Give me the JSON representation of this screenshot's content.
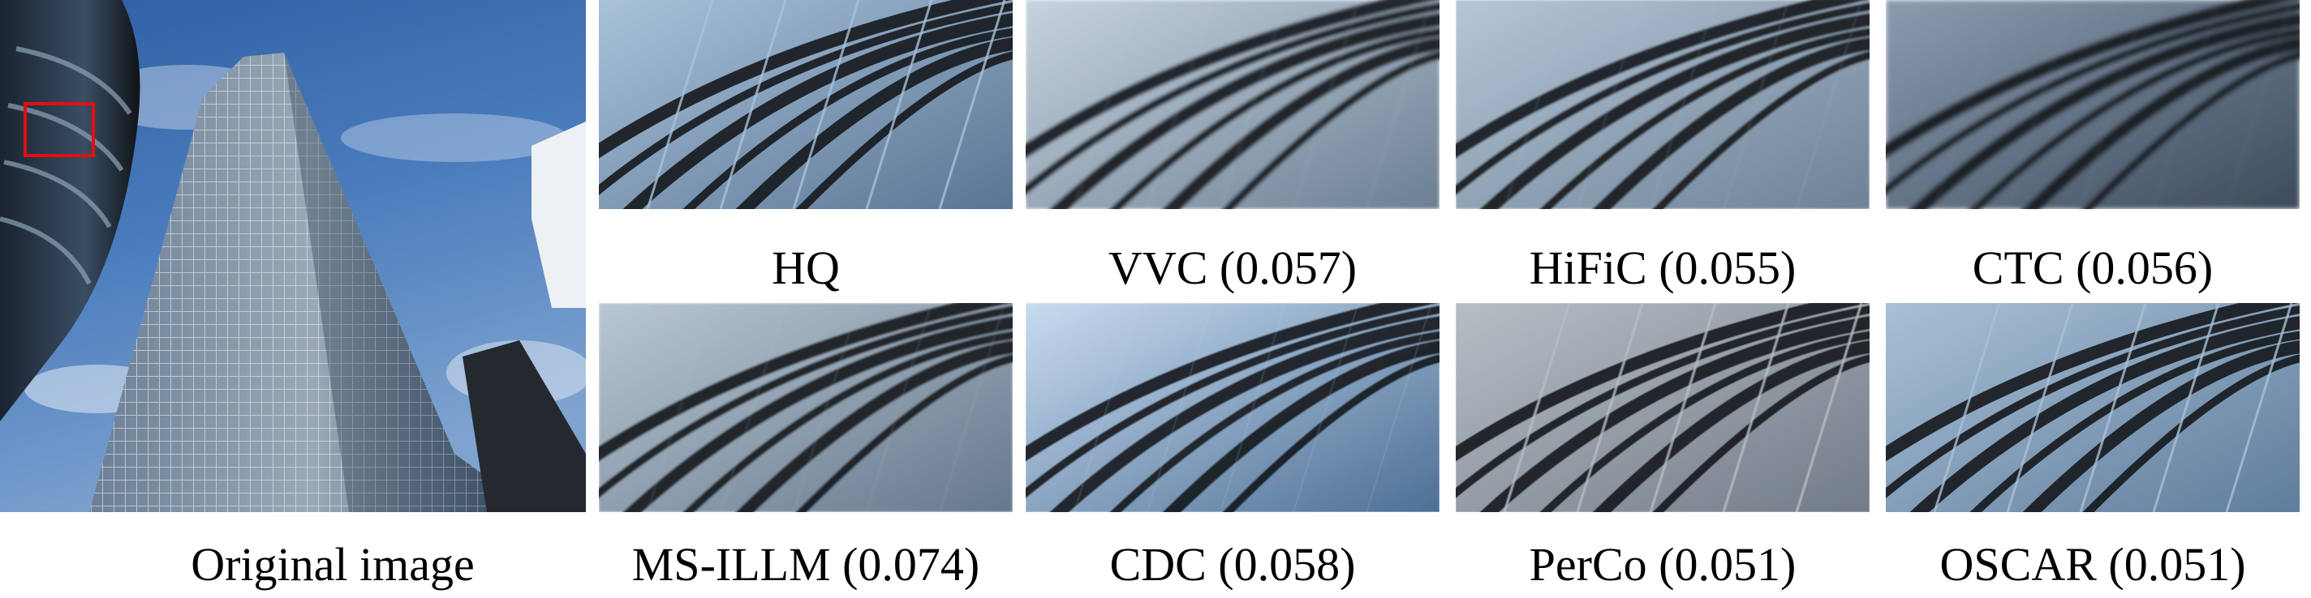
{
  "figure": {
    "original_caption": "Original image",
    "crops": [
      {
        "label": "HQ"
      },
      {
        "label": "VVC (0.057)"
      },
      {
        "label": "HiFiC (0.055)"
      },
      {
        "label": "CTC (0.056)"
      },
      {
        "label": "MS-ILLM (0.074)"
      },
      {
        "label": "CDC (0.058)"
      },
      {
        "label": "PerCo (0.051)"
      },
      {
        "label": "OSCAR (0.051)"
      }
    ],
    "highlight_color": "#e01010",
    "sky_color": "#3f6fae",
    "glass_color": "#6f8aa6",
    "frame_color": "#15181d"
  }
}
